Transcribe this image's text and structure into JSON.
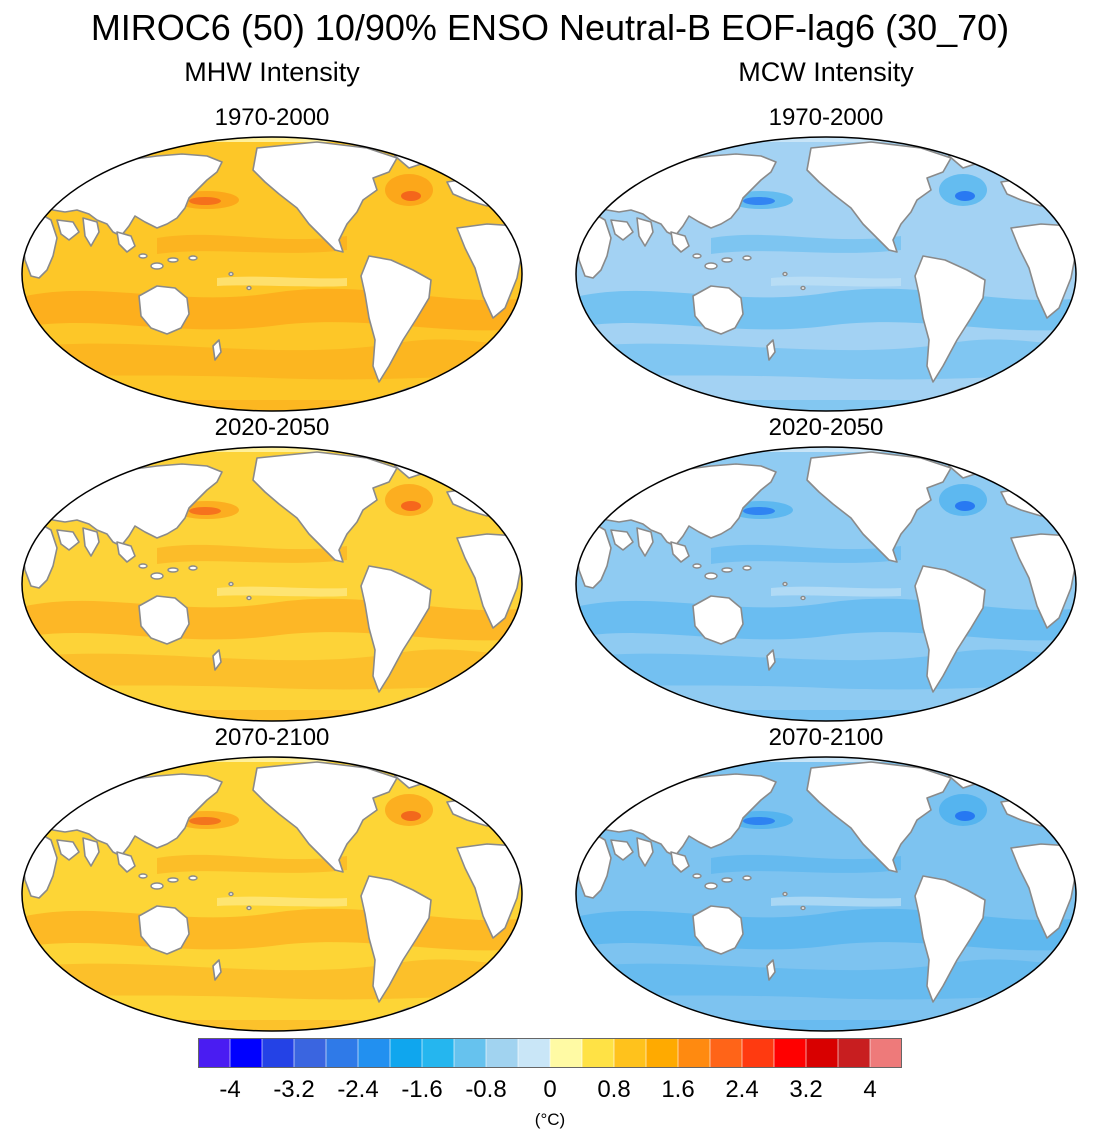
{
  "title": "MIROC6 (50) 10/90% ENSO Neutral-B EOF-lag6 (30_70)",
  "columns": [
    {
      "label": "MHW Intensity",
      "kind": "warm",
      "panels": [
        {
          "period": "1970-2000",
          "base": "#fdc728",
          "pale": "#fff09a",
          "strong": "#fca71a",
          "hot": "#f25a1c"
        },
        {
          "period": "2020-2050",
          "base": "#fdd338",
          "pale": "#fff09a",
          "strong": "#fcae20",
          "hot": "#f45a1c"
        },
        {
          "period": "2070-2100",
          "base": "#fdd536",
          "pale": "#fff09a",
          "strong": "#fcaf20",
          "hot": "#f05c1c"
        }
      ]
    },
    {
      "label": "MCW Intensity",
      "kind": "cold",
      "panels": [
        {
          "period": "1970-2000",
          "base": "#a3d2f3",
          "pale": "#c7e4f7",
          "strong": "#64bcf0",
          "hot": "#1e6df2"
        },
        {
          "period": "2020-2050",
          "base": "#8fcbf2",
          "pale": "#c7e4f7",
          "strong": "#5db8f0",
          "hot": "#1e6df2"
        },
        {
          "period": "2070-2100",
          "base": "#7dc3f0",
          "pale": "#c7e4f7",
          "strong": "#55b4ef",
          "hot": "#1e6df2"
        }
      ]
    }
  ],
  "colorbar": {
    "colors": [
      "#4a1cf2",
      "#0000ff",
      "#2442e6",
      "#3a65e0",
      "#2f7ae8",
      "#2290f0",
      "#0fa6ee",
      "#25b6ef",
      "#66c2ee",
      "#a1d3f0",
      "#c9e6f7",
      "#fffaa4",
      "#ffe245",
      "#ffc21c",
      "#ffaa00",
      "#ff8a10",
      "#ff6418",
      "#ff3a10",
      "#ff0000",
      "#d80000",
      "#c81e20",
      "#ee7a7a"
    ],
    "ticks": [
      "-4",
      "-3.2",
      "-2.4",
      "-1.6",
      "-0.8",
      "0",
      "0.8",
      "1.6",
      "2.4",
      "3.2",
      "4"
    ],
    "units": "(°C)"
  }
}
